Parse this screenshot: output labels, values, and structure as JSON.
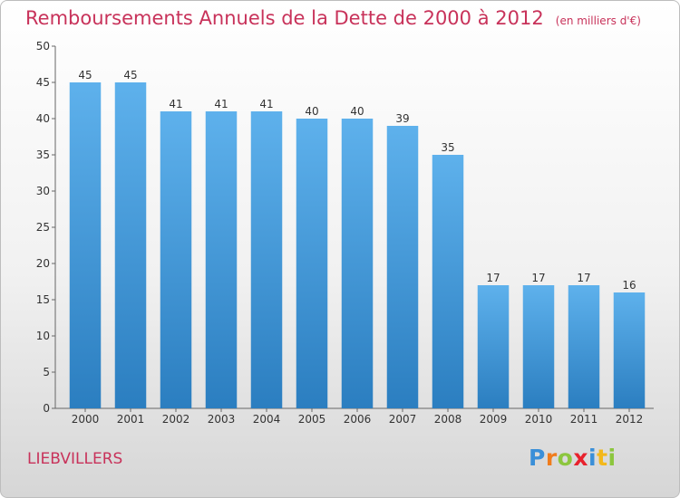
{
  "title": "Remboursements Annuels de la Dette de 2000 à 2012",
  "unit": "(en milliers d'€)",
  "place": "LIEBVILLERS",
  "logo": {
    "text": "Proxiti",
    "letters": [
      {
        "ch": "P",
        "color": "#3a8fd8"
      },
      {
        "ch": "r",
        "color": "#f07c1c"
      },
      {
        "ch": "o",
        "color": "#8cc63e"
      },
      {
        "ch": "x",
        "color": "#e8222d"
      },
      {
        "ch": "i",
        "color": "#3a8fd8"
      },
      {
        "ch": "t",
        "color": "#f3b81b"
      },
      {
        "ch": "i",
        "color": "#8cc63e"
      }
    ]
  },
  "colors": {
    "bar_top": "#5eb1ec",
    "bar_bottom": "#2b7ec0",
    "title": "#c8325a"
  },
  "chart_data": {
    "type": "bar",
    "title": "Remboursements Annuels de la Dette de 2000 à 2012",
    "xlabel": "",
    "ylabel": "",
    "categories": [
      "2000",
      "2001",
      "2002",
      "2003",
      "2004",
      "2005",
      "2006",
      "2007",
      "2008",
      "2009",
      "2010",
      "2011",
      "2012"
    ],
    "values": [
      45,
      45,
      41,
      41,
      41,
      40,
      40,
      39,
      35,
      17,
      17,
      17,
      16
    ],
    "ylim": [
      0,
      50
    ],
    "yticks": [
      0,
      5,
      10,
      15,
      20,
      25,
      30,
      35,
      40,
      45,
      50
    ],
    "grid": false,
    "data_labels": true
  }
}
